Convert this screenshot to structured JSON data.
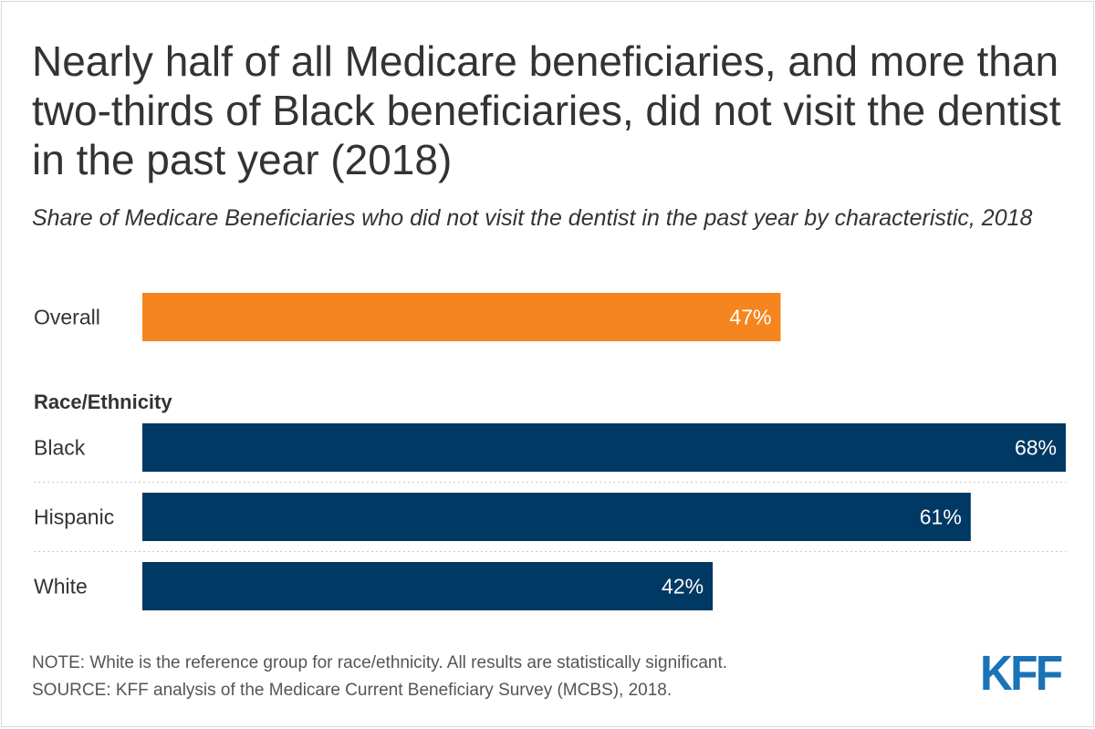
{
  "title": "Nearly half of all Medicare beneficiaries, and more than two-thirds of Black beneficiaries, did not visit the dentist in the past year (2018)",
  "subtitle": "Share of Medicare Beneficiaries who did not visit the dentist in the past year by characteristic, 2018",
  "note": "NOTE: White is the reference group for race/ethnicity. All results are statistically significant.",
  "source": "SOURCE: KFF analysis of the Medicare Current Beneficiary Survey (MCBS), 2018.",
  "logo_text": "KFF",
  "colors": {
    "overall": "#f5861f",
    "race": "#003963",
    "separator": "#c8c8c8",
    "logo": "#1a73b8"
  },
  "chart_data": {
    "type": "bar",
    "orientation": "horizontal",
    "xlim": [
      0,
      68
    ],
    "groups": [
      {
        "heading": "",
        "categories": [
          "Overall"
        ],
        "values": [
          47
        ],
        "labels": [
          "47%"
        ],
        "color": "#f5861f"
      },
      {
        "heading": "Race/Ethnicity",
        "categories": [
          "Black",
          "Hispanic",
          "White"
        ],
        "values": [
          68,
          61,
          42
        ],
        "labels": [
          "68%",
          "61%",
          "42%"
        ],
        "color": "#003963"
      }
    ]
  }
}
